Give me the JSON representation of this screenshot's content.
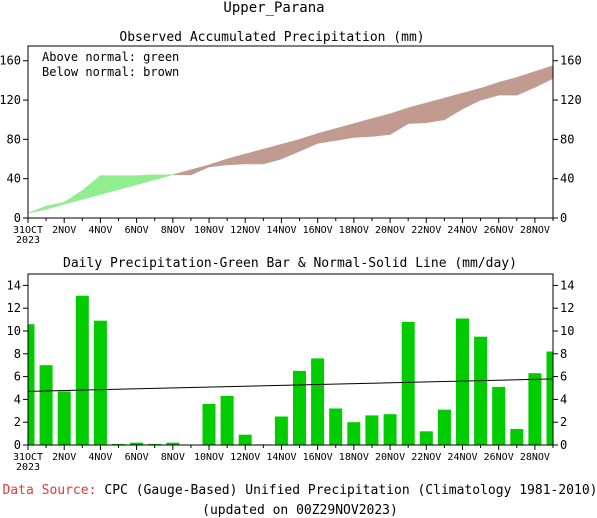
{
  "page": {
    "title": "Upper_Parana",
    "footer": {
      "source_label": "Data Source:",
      "source_text": "CPC (Gauge-Based) Unified Precipitation (Climatology 1981-2010)",
      "updated": "(updated on 00Z29NOV2023)"
    },
    "colors": {
      "above_normal": "#90ee90",
      "below_normal": "#c19a90",
      "daily_bar": "#00cc00",
      "normal_line": "#000000",
      "source_label": "#e03a3a"
    }
  },
  "chart_data": [
    {
      "type": "area",
      "title": "Observed Accumulated Precipitation (mm)",
      "legend_notes": [
        "Above normal: green",
        "Below normal: brown"
      ],
      "x_tick_labels": [
        "31OCT",
        "2NOV",
        "4NOV",
        "6NOV",
        "8NOV",
        "10NOV",
        "12NOV",
        "14NOV",
        "16NOV",
        "18NOV",
        "20NOV",
        "22NOV",
        "24NOV",
        "26NOV",
        "28NOV"
      ],
      "x_year_label": "2023",
      "x_range_days": [
        0,
        29
      ],
      "ylim": [
        0,
        175
      ],
      "yticks": [
        0,
        40,
        80,
        120,
        160
      ],
      "grid": false,
      "series": [
        {
          "name": "Observed",
          "x": [
            0,
            1,
            2,
            3,
            4,
            5,
            6,
            7,
            8,
            9,
            10,
            11,
            12,
            13,
            14,
            15,
            16,
            17,
            18,
            19,
            20,
            21,
            22,
            23,
            24,
            25,
            26,
            27,
            28,
            29
          ],
          "values": [
            5,
            12,
            16,
            28,
            43,
            43,
            43,
            44,
            44,
            44,
            52,
            54,
            55,
            55,
            60,
            68,
            76,
            79,
            82,
            83,
            85,
            96,
            97,
            100,
            111,
            120,
            125,
            125,
            133,
            142
          ]
        },
        {
          "name": "Normal",
          "x": [
            0,
            1,
            2,
            3,
            4,
            5,
            6,
            7,
            8,
            9,
            10,
            11,
            12,
            13,
            14,
            15,
            16,
            17,
            18,
            19,
            20,
            21,
            22,
            23,
            24,
            25,
            26,
            27,
            28,
            29
          ],
          "values": [
            5,
            9,
            14,
            19,
            24,
            29,
            34,
            39,
            44,
            49,
            54,
            60,
            65,
            70,
            75,
            80,
            86,
            91,
            96,
            101,
            106,
            112,
            117,
            122,
            127,
            132,
            138,
            143,
            149,
            155
          ]
        }
      ]
    },
    {
      "type": "bar",
      "title": "Daily Precipitation-Green Bar & Normal-Solid Line (mm/day)",
      "x_tick_labels": [
        "31OCT",
        "2NOV",
        "4NOV",
        "6NOV",
        "8NOV",
        "10NOV",
        "12NOV",
        "14NOV",
        "16NOV",
        "18NOV",
        "20NOV",
        "22NOV",
        "24NOV",
        "26NOV",
        "28NOV"
      ],
      "x_year_label": "2023",
      "x_range_days": [
        0,
        29
      ],
      "ylim": [
        0,
        15
      ],
      "yticks": [
        0,
        2,
        4,
        6,
        8,
        10,
        12,
        14
      ],
      "grid": false,
      "series": [
        {
          "name": "Daily precipitation",
          "x": [
            0,
            1,
            2,
            3,
            4,
            5,
            6,
            7,
            8,
            9,
            10,
            11,
            12,
            13,
            14,
            15,
            16,
            17,
            18,
            19,
            20,
            21,
            22,
            23,
            24,
            25,
            26,
            27,
            28,
            29
          ],
          "values": [
            10.6,
            7.0,
            4.7,
            13.1,
            10.9,
            0.1,
            0.2,
            0.1,
            0.2,
            0,
            3.6,
            4.3,
            0.9,
            0.05,
            2.5,
            6.5,
            7.6,
            3.2,
            2.0,
            2.6,
            2.7,
            10.8,
            1.2,
            3.1,
            11.1,
            9.5,
            5.1,
            1.4,
            6.3,
            8.2
          ]
        },
        {
          "name": "Normal",
          "x": [
            0,
            29
          ],
          "values": [
            4.7,
            5.8
          ]
        }
      ]
    }
  ]
}
